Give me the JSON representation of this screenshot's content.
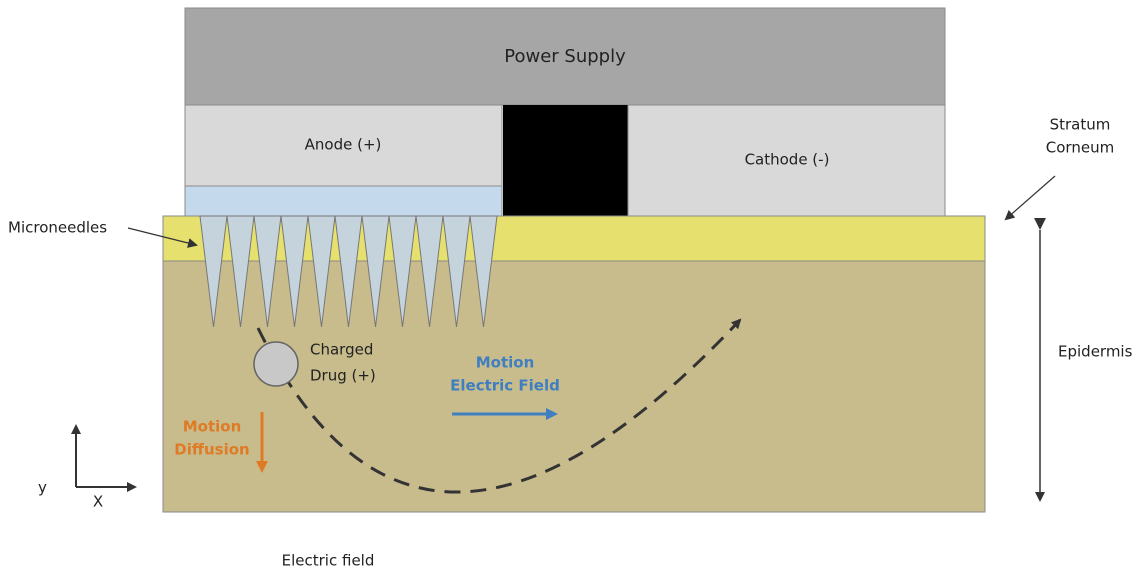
{
  "labels": {
    "power_supply": "Power Supply",
    "anode": "Anode (+)",
    "cathode": "Cathode (-)",
    "microneedles": "Microneedles",
    "stratum_corneum": [
      "Stratum",
      "Corneum"
    ],
    "epidermis": "Epidermis",
    "charged_drug": [
      "Charged",
      "Drug (+)"
    ],
    "motion_electric_field": [
      "Motion",
      "Electric Field"
    ],
    "motion_diffusion": [
      "Motion",
      "Diffusion"
    ],
    "axis_y": "y",
    "axis_x": "X",
    "caption": "Electric field"
  }
}
